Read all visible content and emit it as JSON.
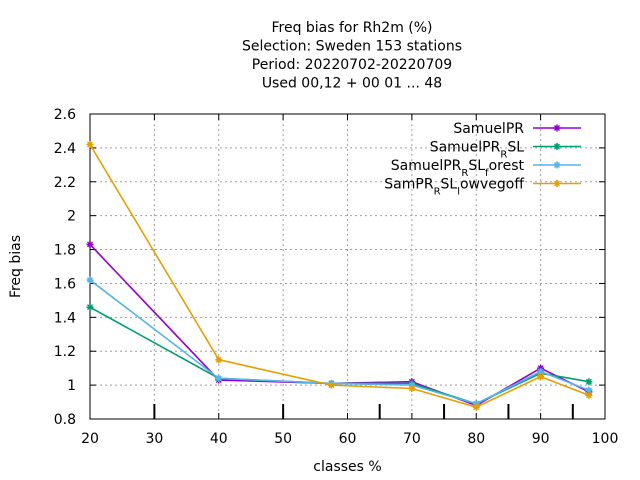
{
  "chart_data": {
    "type": "line",
    "title_lines": [
      "Freq bias  for Rh2m (%)",
      "Selection: Sweden    153 stations",
      "Period: 20220702-20220709",
      "Used  00,12  + 00 01 ... 48"
    ],
    "xlabel": "classes %",
    "ylabel": "Freq bias",
    "xlim": [
      20,
      100
    ],
    "ylim": [
      0.8,
      2.6
    ],
    "x_ticks": [
      20,
      30,
      40,
      50,
      60,
      70,
      80,
      90,
      100
    ],
    "y_ticks": [
      0.8,
      1,
      1.2,
      1.4,
      1.6,
      1.8,
      2,
      2.2,
      2.4,
      2.6
    ],
    "grid": true,
    "legend_position": "top-right",
    "x_markers": [
      30,
      50,
      65,
      75,
      85,
      95
    ],
    "series": [
      {
        "name": "SamuelPR",
        "name_parts": [
          {
            "t": "SamuelPR"
          }
        ],
        "color": "#9400d3",
        "x": [
          20,
          40,
          57.5,
          70,
          80,
          90,
          97.5
        ],
        "y": [
          1.83,
          1.03,
          1.01,
          1.02,
          0.88,
          1.1,
          0.96
        ]
      },
      {
        "name": "SamuelPR_RSL",
        "name_parts": [
          {
            "t": "SamuelPR"
          },
          {
            "t": "R",
            "sub": true
          },
          {
            "t": "SL"
          }
        ],
        "color": "#009e73",
        "x": [
          20,
          40,
          57.5,
          70,
          80,
          90,
          97.5
        ],
        "y": [
          1.46,
          1.04,
          1.01,
          1.01,
          0.89,
          1.07,
          1.02
        ]
      },
      {
        "name": "SamuelPR_RSL_forest",
        "name_parts": [
          {
            "t": "SamuelPR"
          },
          {
            "t": "R",
            "sub": true
          },
          {
            "t": "SL"
          },
          {
            "t": "f",
            "sub": true
          },
          {
            "t": "orest"
          }
        ],
        "color": "#56b4e9",
        "x": [
          20,
          40,
          57.5,
          70,
          80,
          90,
          97.5
        ],
        "y": [
          1.62,
          1.04,
          1.01,
          1.0,
          0.89,
          1.08,
          0.97
        ]
      },
      {
        "name": "SamPR_RSL_lowvegoff",
        "name_parts": [
          {
            "t": "SamPR"
          },
          {
            "t": "R",
            "sub": true
          },
          {
            "t": "SL"
          },
          {
            "t": "l",
            "sub": true
          },
          {
            "t": "owvegoff"
          }
        ],
        "color": "#e69f00",
        "x": [
          20,
          40,
          57.5,
          70,
          80,
          90,
          97.5
        ],
        "y": [
          2.42,
          1.15,
          1.0,
          0.98,
          0.87,
          1.05,
          0.94
        ]
      }
    ]
  }
}
